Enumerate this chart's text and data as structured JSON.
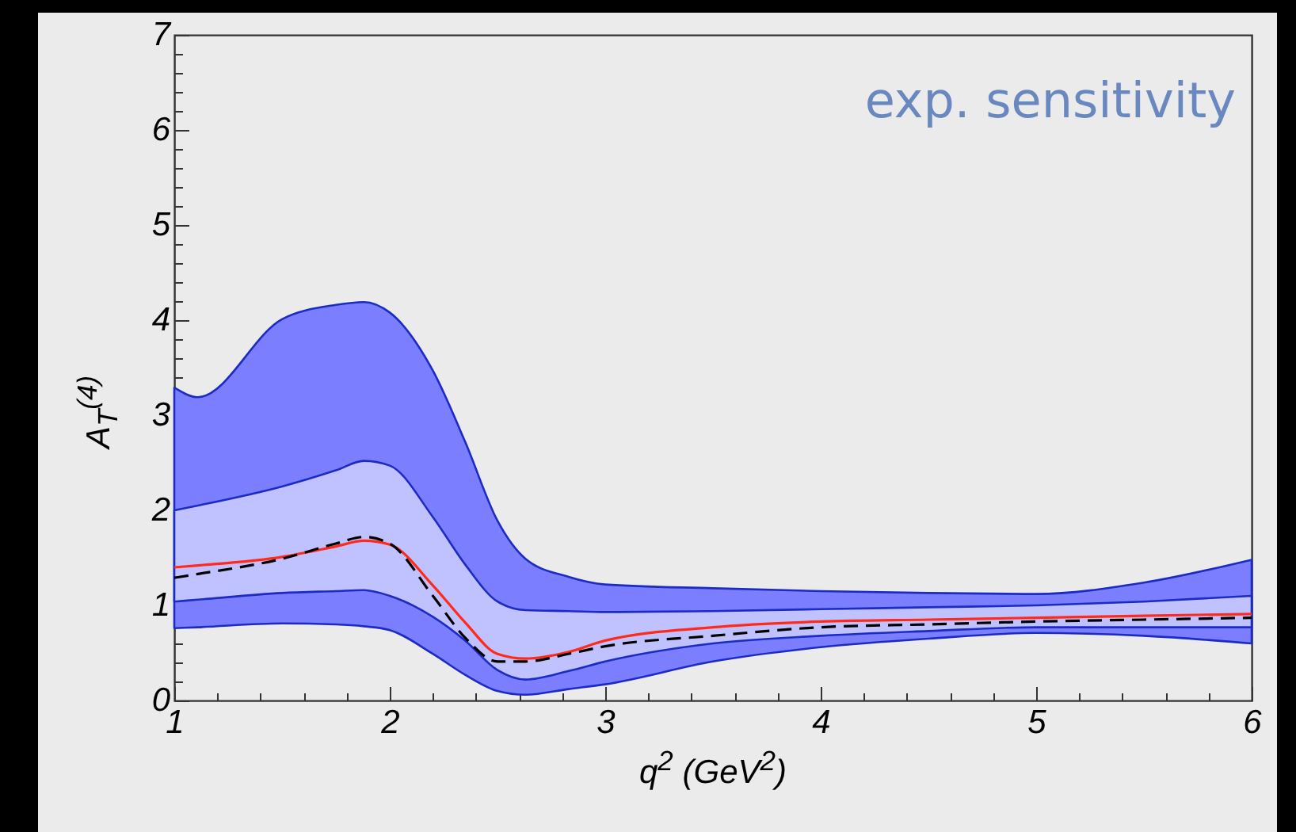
{
  "chart_data": {
    "type": "area",
    "xlabel": "q$^{2}$ (GeV$^{2}$)",
    "ylabel": "A$_{T}$$^{(4)}$",
    "annotations": [
      "exp. sensitivity"
    ],
    "x": [
      1,
      1.11,
      1.5,
      1.75,
      1.88,
      2,
      2.2,
      2.35,
      2.5,
      2.63,
      2.83,
      3,
      3.5,
      4,
      4.5,
      5,
      5.5,
      6
    ],
    "series": [
      {
        "color": "#7b7fff",
        "values": [
          null,
          null,
          null,
          null,
          null,
          null,
          null,
          null,
          null,
          null,
          null,
          null,
          null,
          null,
          null,
          null,
          null,
          null
        ],
        "upper": [
          3.29,
          3.19,
          4.01,
          4.16,
          4.19,
          4.08,
          3.47,
          2.72,
          1.89,
          1.49,
          1.3,
          1.22,
          1.18,
          1.15,
          1.13,
          1.12,
          1.24,
          1.48
        ],
        "lower": [
          0.76,
          0.77,
          0.81,
          0.8,
          0.78,
          0.74,
          0.49,
          0.27,
          0.1,
          0.06,
          0.12,
          0.17,
          0.41,
          0.56,
          0.65,
          0.71,
          0.68,
          0.6
        ]
      },
      {
        "color": "#c0c2ff",
        "values": [
          null,
          null,
          null,
          null,
          null,
          null,
          null,
          null,
          null,
          null,
          null,
          null,
          null,
          null,
          null,
          null,
          null,
          null
        ],
        "upper": [
          2.0,
          2.05,
          2.25,
          2.42,
          2.52,
          2.47,
          1.93,
          1.43,
          1.04,
          0.95,
          0.94,
          0.93,
          0.94,
          0.96,
          0.98,
          1.0,
          1.04,
          1.1
        ],
        "lower": [
          1.04,
          1.06,
          1.13,
          1.15,
          1.16,
          1.1,
          0.88,
          0.63,
          0.32,
          0.22,
          0.31,
          0.41,
          0.6,
          0.68,
          0.73,
          0.77,
          0.77,
          0.77
        ]
      },
      {
        "type": "line",
        "color": "#ff2a1a",
        "line_style": "solid",
        "values": [
          1.4,
          1.42,
          1.51,
          1.62,
          1.68,
          1.64,
          1.21,
          0.82,
          0.49,
          0.44,
          0.51,
          0.63,
          0.77,
          0.83,
          0.85,
          0.87,
          0.89,
          0.91
        ]
      },
      {
        "type": "line",
        "color": "#000000",
        "line_style": "dashed",
        "values": [
          1.29,
          1.33,
          1.49,
          1.65,
          1.72,
          1.65,
          1.1,
          0.66,
          0.41,
          0.41,
          0.49,
          0.57,
          0.68,
          0.77,
          0.8,
          0.83,
          0.85,
          0.87
        ]
      }
    ],
    "xlim": [
      1,
      6
    ],
    "ylim": [
      0,
      7
    ],
    "xticks": [
      1,
      {
        "value": 1.2,
        "label": null
      },
      {
        "value": 1.4,
        "label": null
      },
      {
        "value": 1.6,
        "label": null
      },
      {
        "value": 1.8,
        "label": null
      },
      2,
      {
        "value": 2.2,
        "label": null
      },
      {
        "value": 2.4,
        "label": null
      },
      {
        "value": 2.6,
        "label": null
      },
      {
        "value": 2.8,
        "label": null
      },
      3,
      {
        "value": 3.2,
        "label": null
      },
      {
        "value": 3.4,
        "label": null
      },
      {
        "value": 3.6,
        "label": null
      },
      {
        "value": 3.8,
        "label": null
      },
      4,
      {
        "value": 4.2,
        "label": null
      },
      {
        "value": 4.4,
        "label": null
      },
      {
        "value": 4.6,
        "label": null
      },
      {
        "value": 4.8,
        "label": null
      },
      5,
      {
        "value": 5.2,
        "label": null
      },
      {
        "value": 5.4,
        "label": null
      },
      {
        "value": 5.6,
        "label": null
      },
      {
        "value": 5.8,
        "label": null
      },
      6
    ],
    "yticks": [
      0,
      {
        "value": 0.2,
        "label": null
      },
      {
        "value": 0.4,
        "label": null
      },
      {
        "value": 0.6,
        "label": null
      },
      {
        "value": 0.8,
        "label": null
      },
      1,
      {
        "value": 1.2,
        "label": null
      },
      {
        "value": 1.4,
        "label": null
      },
      {
        "value": 1.6,
        "label": null
      },
      {
        "value": 1.8,
        "label": null
      },
      2,
      {
        "value": 2.2,
        "label": null
      },
      {
        "value": 2.4,
        "label": null
      },
      {
        "value": 2.6,
        "label": null
      },
      {
        "value": 2.8,
        "label": null
      },
      3,
      {
        "value": 3.2,
        "label": null
      },
      {
        "value": 3.4,
        "label": null
      },
      {
        "value": 3.6,
        "label": null
      },
      {
        "value": 3.8,
        "label": null
      },
      4,
      {
        "value": 4.2,
        "label": null
      },
      {
        "value": 4.4,
        "label": null
      },
      {
        "value": 4.6,
        "label": null
      },
      {
        "value": 4.8,
        "label": null
      },
      5,
      {
        "value": 5.2,
        "label": null
      },
      {
        "value": 5.4,
        "label": null
      },
      {
        "value": 5.6,
        "label": null
      },
      {
        "value": 5.8,
        "label": null
      },
      6,
      {
        "value": 6.2,
        "label": null
      },
      {
        "value": 6.4,
        "label": null
      },
      {
        "value": 6.6,
        "label": null
      },
      {
        "value": 6.8,
        "label": null
      },
      7
    ],
    "grid": false
  }
}
